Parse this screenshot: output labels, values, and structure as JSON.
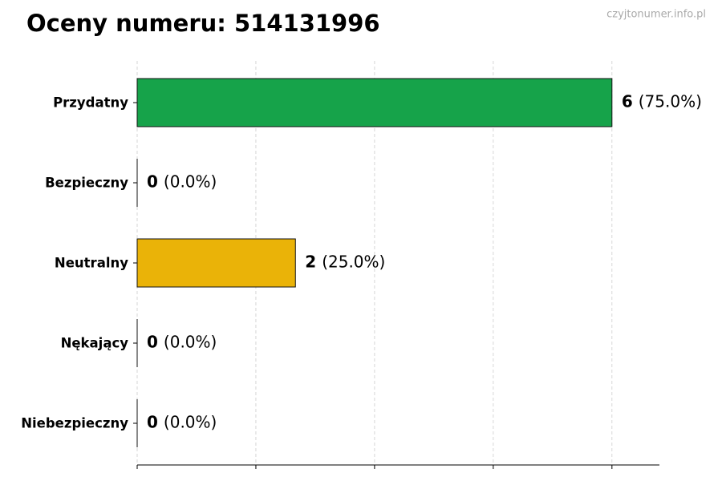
{
  "chart_data": {
    "type": "hbar",
    "title": "Oceny numeru: 514131996",
    "source": "czyjtonumer.info.pl",
    "categories": [
      "Przydatny",
      "Bezpieczny",
      "Neutralny",
      "Nękający",
      "Niebezpieczny"
    ],
    "values": [
      6,
      0,
      2,
      0,
      0
    ],
    "share_labels": [
      "(75.0%)",
      "(0.0%)",
      "(25.0%)",
      "(0.0%)",
      "(0.0%)"
    ],
    "colors": [
      "#16a34a",
      "#16a34a",
      "#eab308",
      "#f97316",
      "#dc2626"
    ],
    "xlim": [
      0,
      6.6
    ],
    "xticks": [
      0,
      1.5,
      3,
      4.5,
      6
    ],
    "grid": true
  }
}
